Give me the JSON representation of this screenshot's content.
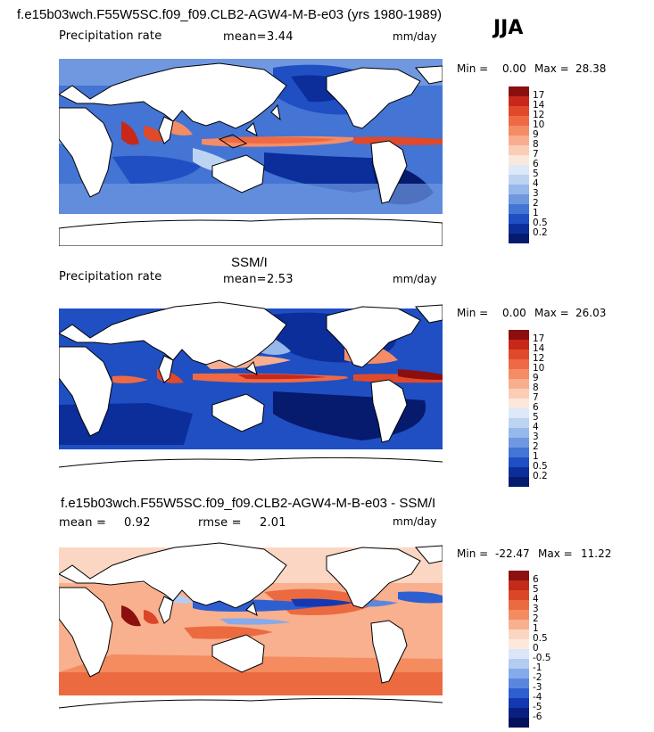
{
  "season": "JJA",
  "panels": [
    {
      "id": "model",
      "title": "f.e15b03wch.F55W5SC.f09_f09.CLB2-AGW4-M-B-e03 (yrs 1980-1989)",
      "field_label": "Precipitation rate",
      "mean_label": "mean=",
      "mean_value": "3.44",
      "units": "mm/day",
      "min_label": "Min =",
      "min_value": "0.00",
      "max_label": "Max =",
      "max_value": "28.38",
      "levels": [
        "17",
        "14",
        "12",
        "10",
        "9",
        "8",
        "7",
        "6",
        "5",
        "4",
        "3",
        "2",
        "1",
        "0.5",
        "0.2"
      ]
    },
    {
      "id": "obs",
      "title": "SSM/I",
      "field_label": "Precipitation rate",
      "mean_label": "mean=",
      "mean_value": "2.53",
      "units": "mm/day",
      "min_label": "Min =",
      "min_value": "0.00",
      "max_label": "Max =",
      "max_value": "26.03",
      "levels": [
        "17",
        "14",
        "12",
        "10",
        "9",
        "8",
        "7",
        "6",
        "5",
        "4",
        "3",
        "2",
        "1",
        "0.5",
        "0.2"
      ]
    },
    {
      "id": "diff",
      "title": "f.e15b03wch.F55W5SC.f09_f09.CLB2-AGW4-M-B-e03 - SSM/I",
      "mean_label": "mean =",
      "mean_value": "0.92",
      "rmse_label": "rmse =",
      "rmse_value": "2.01",
      "units": "mm/day",
      "min_label": "Min =",
      "min_value": "-22.47",
      "max_label": "Max =",
      "max_value": "11.22",
      "levels": [
        "6",
        "5",
        "4",
        "3",
        "2",
        "1",
        "0.5",
        "0",
        "-0.5",
        "-1",
        "-2",
        "-3",
        "-4",
        "-5",
        "-6"
      ]
    }
  ],
  "colors": {
    "precip": [
      "#8c0f0f",
      "#c8281a",
      "#e04a2a",
      "#ef6a44",
      "#f58c66",
      "#f9ad8f",
      "#fbcdb5",
      "#fbe8dc",
      "#dde9f8",
      "#bcd4f1",
      "#96b8ea",
      "#6f98e0",
      "#4474d4",
      "#1f4fc2",
      "#0c2e9a",
      "#061a6e"
    ],
    "diff": [
      "#8c1010",
      "#c42a1a",
      "#dc4628",
      "#ec6a40",
      "#f48c60",
      "#f8b08e",
      "#fbd6c2",
      "#fde9dc",
      "#dbe6f8",
      "#b4ccf1",
      "#86aaea",
      "#5b86e0",
      "#2e5fd0",
      "#1438b2",
      "#0a1f82",
      "#06115c"
    ]
  },
  "chart_data": [
    {
      "type": "heatmap",
      "title": "f.e15b03wch.F55W5SC.f09_f09.CLB2-AGW4-M-B-e03 (yrs 1980-1989)",
      "subtitle": "Precipitation rate",
      "units": "mm/day",
      "mean": 3.44,
      "min": 0.0,
      "max": 28.38,
      "contour_levels": [
        0.2,
        0.5,
        1,
        2,
        3,
        4,
        5,
        6,
        7,
        8,
        9,
        10,
        12,
        14,
        17
      ]
    },
    {
      "type": "heatmap",
      "title": "SSM/I",
      "subtitle": "Precipitation rate",
      "units": "mm/day",
      "mean": 2.53,
      "min": 0.0,
      "max": 26.03,
      "contour_levels": [
        0.2,
        0.5,
        1,
        2,
        3,
        4,
        5,
        6,
        7,
        8,
        9,
        10,
        12,
        14,
        17
      ]
    },
    {
      "type": "heatmap",
      "title": "f.e15b03wch.F55W5SC.f09_f09.CLB2-AGW4-M-B-e03 - SSM/I",
      "units": "mm/day",
      "mean": 0.92,
      "rmse": 2.01,
      "min": -22.47,
      "max": 11.22,
      "contour_levels": [
        -6,
        -5,
        -4,
        -3,
        -2,
        -1,
        -0.5,
        0,
        0.5,
        1,
        2,
        3,
        4,
        5,
        6
      ]
    }
  ]
}
